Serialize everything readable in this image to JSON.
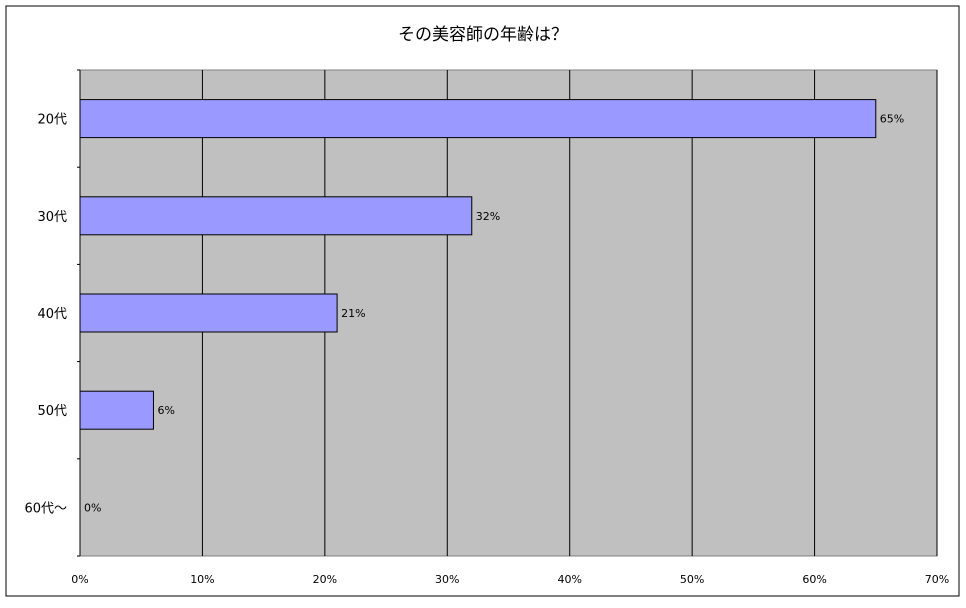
{
  "chart_data": {
    "type": "bar",
    "orientation": "horizontal",
    "title": "その美容師の年齢は？",
    "categories": [
      "20代",
      "30代",
      "40代",
      "50代",
      "60代〜"
    ],
    "values": [
      65,
      32,
      21,
      6,
      0
    ],
    "data_labels": [
      "65%",
      "32%",
      "21%",
      "6%",
      "0%"
    ],
    "x_ticks": [
      "0%",
      "10%",
      "20%",
      "30%",
      "40%",
      "50%",
      "60%",
      "70%"
    ],
    "xlim": [
      0,
      70
    ],
    "xlabel": "",
    "ylabel": "",
    "grid": true,
    "legend": "none",
    "colors": {
      "bar_fill": "#9999ff",
      "bar_stroke": "#000000",
      "plot_background": "#c0c0c0",
      "chart_background": "#ffffff",
      "gridline": "#000000",
      "text": "#000000"
    }
  }
}
